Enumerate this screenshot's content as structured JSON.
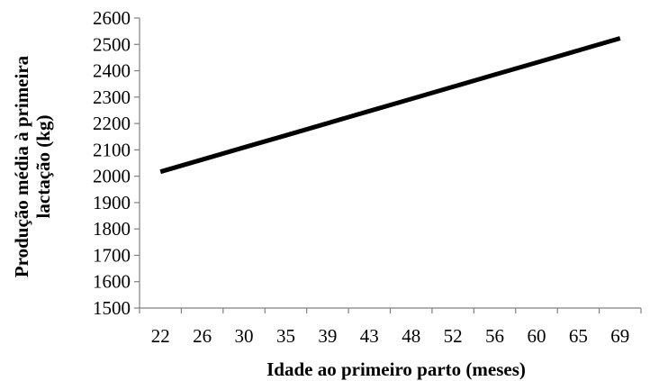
{
  "chart_data": {
    "type": "line",
    "title": "",
    "xlabel": "Idade ao primeiro parto (meses)",
    "ylabel_line1": "Produção média à primeira",
    "ylabel_line2": "lactação (kg)",
    "categories": [
      "22",
      "26",
      "30",
      "35",
      "39",
      "43",
      "48",
      "52",
      "56",
      "60",
      "65",
      "69"
    ],
    "ylim": [
      1500,
      2600
    ],
    "yticks": [
      1500,
      1600,
      1700,
      1800,
      1900,
      2000,
      2100,
      2200,
      2300,
      2400,
      2500,
      2600
    ],
    "grid": false,
    "legend": "none",
    "series": [
      {
        "color": "#000000",
        "values": [
          2017,
          2063,
          2109,
          2155,
          2201,
          2247,
          2293,
          2339,
          2385,
          2431,
          2477,
          2523
        ]
      }
    ]
  }
}
